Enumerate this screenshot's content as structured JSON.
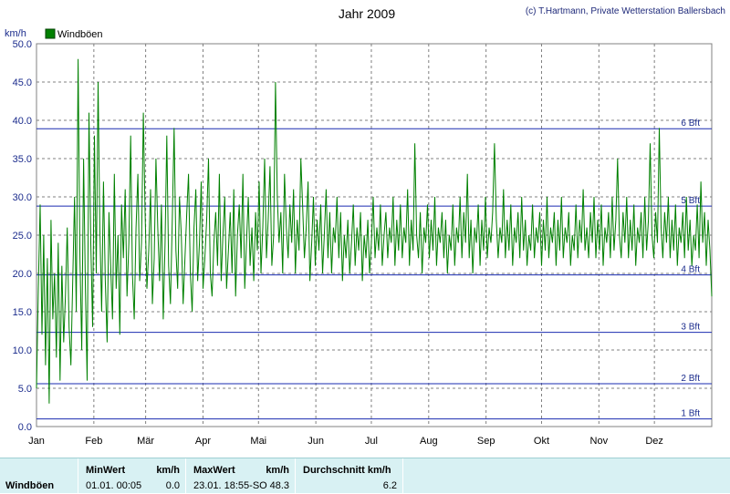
{
  "chart_data": {
    "type": "line",
    "title": "Jahr 2009",
    "credit": "(c) T.Hartmann, Private Wetterstation Ballersbach",
    "ylabel": "km/h",
    "ylim": [
      0,
      50
    ],
    "yticks": [
      "0.0",
      "5.0",
      "10.0",
      "15.0",
      "20.0",
      "25.0",
      "30.0",
      "35.0",
      "40.0",
      "45.0",
      "50.0"
    ],
    "xticks": [
      "Jan",
      "Feb",
      "Mär",
      "Apr",
      "Mai",
      "Jun",
      "Jul",
      "Aug",
      "Sep",
      "Okt",
      "Nov",
      "Dez"
    ],
    "days": 365,
    "grid": true,
    "legend": "top-left",
    "series": [
      {
        "name": "Windböen",
        "color": "#008000",
        "values": [
          5,
          18,
          29,
          12,
          25,
          8,
          22,
          3,
          27,
          14,
          20,
          9,
          24,
          6,
          21,
          11,
          17,
          26,
          13,
          8,
          19,
          30,
          15,
          48,
          22,
          10,
          35,
          18,
          6,
          41,
          24,
          13,
          38,
          20,
          45,
          26,
          15,
          32,
          19,
          11,
          28,
          21,
          14,
          33,
          18,
          25,
          12,
          29,
          22,
          31,
          17,
          24,
          38,
          20,
          14,
          26,
          33,
          19,
          24,
          41,
          28,
          18,
          23,
          31,
          16,
          22,
          35,
          26,
          19,
          29,
          14,
          24,
          38,
          21,
          16,
          27,
          39,
          23,
          18,
          30,
          25,
          16,
          22,
          28,
          33,
          20,
          15,
          26,
          31,
          19,
          24,
          32,
          18,
          22,
          27,
          35,
          20,
          17,
          24,
          28,
          21,
          33,
          19,
          25,
          30,
          18,
          23,
          28,
          20,
          31,
          17,
          25,
          29,
          22,
          33,
          18,
          24,
          30,
          21,
          26,
          19,
          28,
          23,
          32,
          20,
          26,
          35,
          22,
          27,
          34,
          21,
          25,
          45,
          30,
          24,
          28,
          20,
          33,
          26,
          22,
          29,
          24,
          31,
          20,
          27,
          23,
          35,
          29,
          22,
          26,
          32,
          19,
          24,
          30,
          21,
          27,
          23,
          29,
          20,
          25,
          31,
          22,
          28,
          20,
          26,
          24,
          30,
          22,
          28,
          19,
          25,
          22,
          27,
          20,
          24,
          29,
          21,
          26,
          23,
          28,
          19,
          25,
          22,
          27,
          20,
          24,
          30,
          22,
          26,
          23,
          29,
          21,
          25,
          28,
          22,
          26,
          24,
          30,
          21,
          27,
          23,
          29,
          22,
          26,
          24,
          31,
          21,
          27,
          23,
          37,
          25,
          22,
          28,
          20,
          26,
          24,
          29,
          22,
          27,
          23,
          30,
          21,
          26,
          24,
          28,
          22,
          27,
          20,
          25,
          23,
          29,
          21,
          26,
          24,
          30,
          22,
          28,
          24,
          33,
          22,
          27,
          20,
          26,
          24,
          29,
          21,
          27,
          23,
          30,
          22,
          26,
          24,
          28,
          37,
          27,
          22,
          26,
          24,
          31,
          22,
          27,
          23,
          29,
          21,
          26,
          24,
          28,
          22,
          30,
          23,
          27,
          21,
          25,
          23,
          29,
          22,
          26,
          24,
          28,
          21,
          27,
          23,
          30,
          22,
          26,
          24,
          28,
          21,
          27,
          23,
          30,
          22,
          26,
          24,
          28,
          21,
          25,
          23,
          29,
          22,
          27,
          24,
          31,
          23,
          26,
          22,
          28,
          24,
          30,
          22,
          27,
          23,
          29,
          21,
          26,
          24,
          28,
          22,
          30,
          23,
          27,
          35,
          25,
          22,
          28,
          24,
          30,
          22,
          27,
          23,
          29,
          21,
          26,
          24,
          28,
          22,
          30,
          23,
          27,
          37,
          25,
          22,
          28,
          24,
          39,
          26,
          22,
          28,
          24,
          30,
          22,
          27,
          23,
          29,
          21,
          26,
          24,
          28,
          22,
          30,
          23,
          27,
          21,
          25,
          23,
          29,
          22,
          32,
          24,
          28,
          21,
          27,
          23,
          17
        ]
      }
    ],
    "reference_lines": [
      {
        "label": "1 Bft",
        "value": 1
      },
      {
        "label": "2 Bft",
        "value": 5.6
      },
      {
        "label": "3 Bft",
        "value": 12.3
      },
      {
        "label": "4 Bft",
        "value": 19.8
      },
      {
        "label": "5 Bft",
        "value": 28.8
      },
      {
        "label": "6 Bft",
        "value": 38.9
      }
    ]
  },
  "stats": {
    "row_label": "Windböen",
    "min_label": "MinWert",
    "min_unit": "km/h",
    "min_time": "01.01.  00:05",
    "min_value": "0.0",
    "max_label": "MaxWert",
    "max_unit": "km/h",
    "max_time": "23.01.  18:55-SO",
    "max_value": "48.3",
    "avg_label": "Durchschnitt km/h",
    "avg_value": "6.2"
  }
}
